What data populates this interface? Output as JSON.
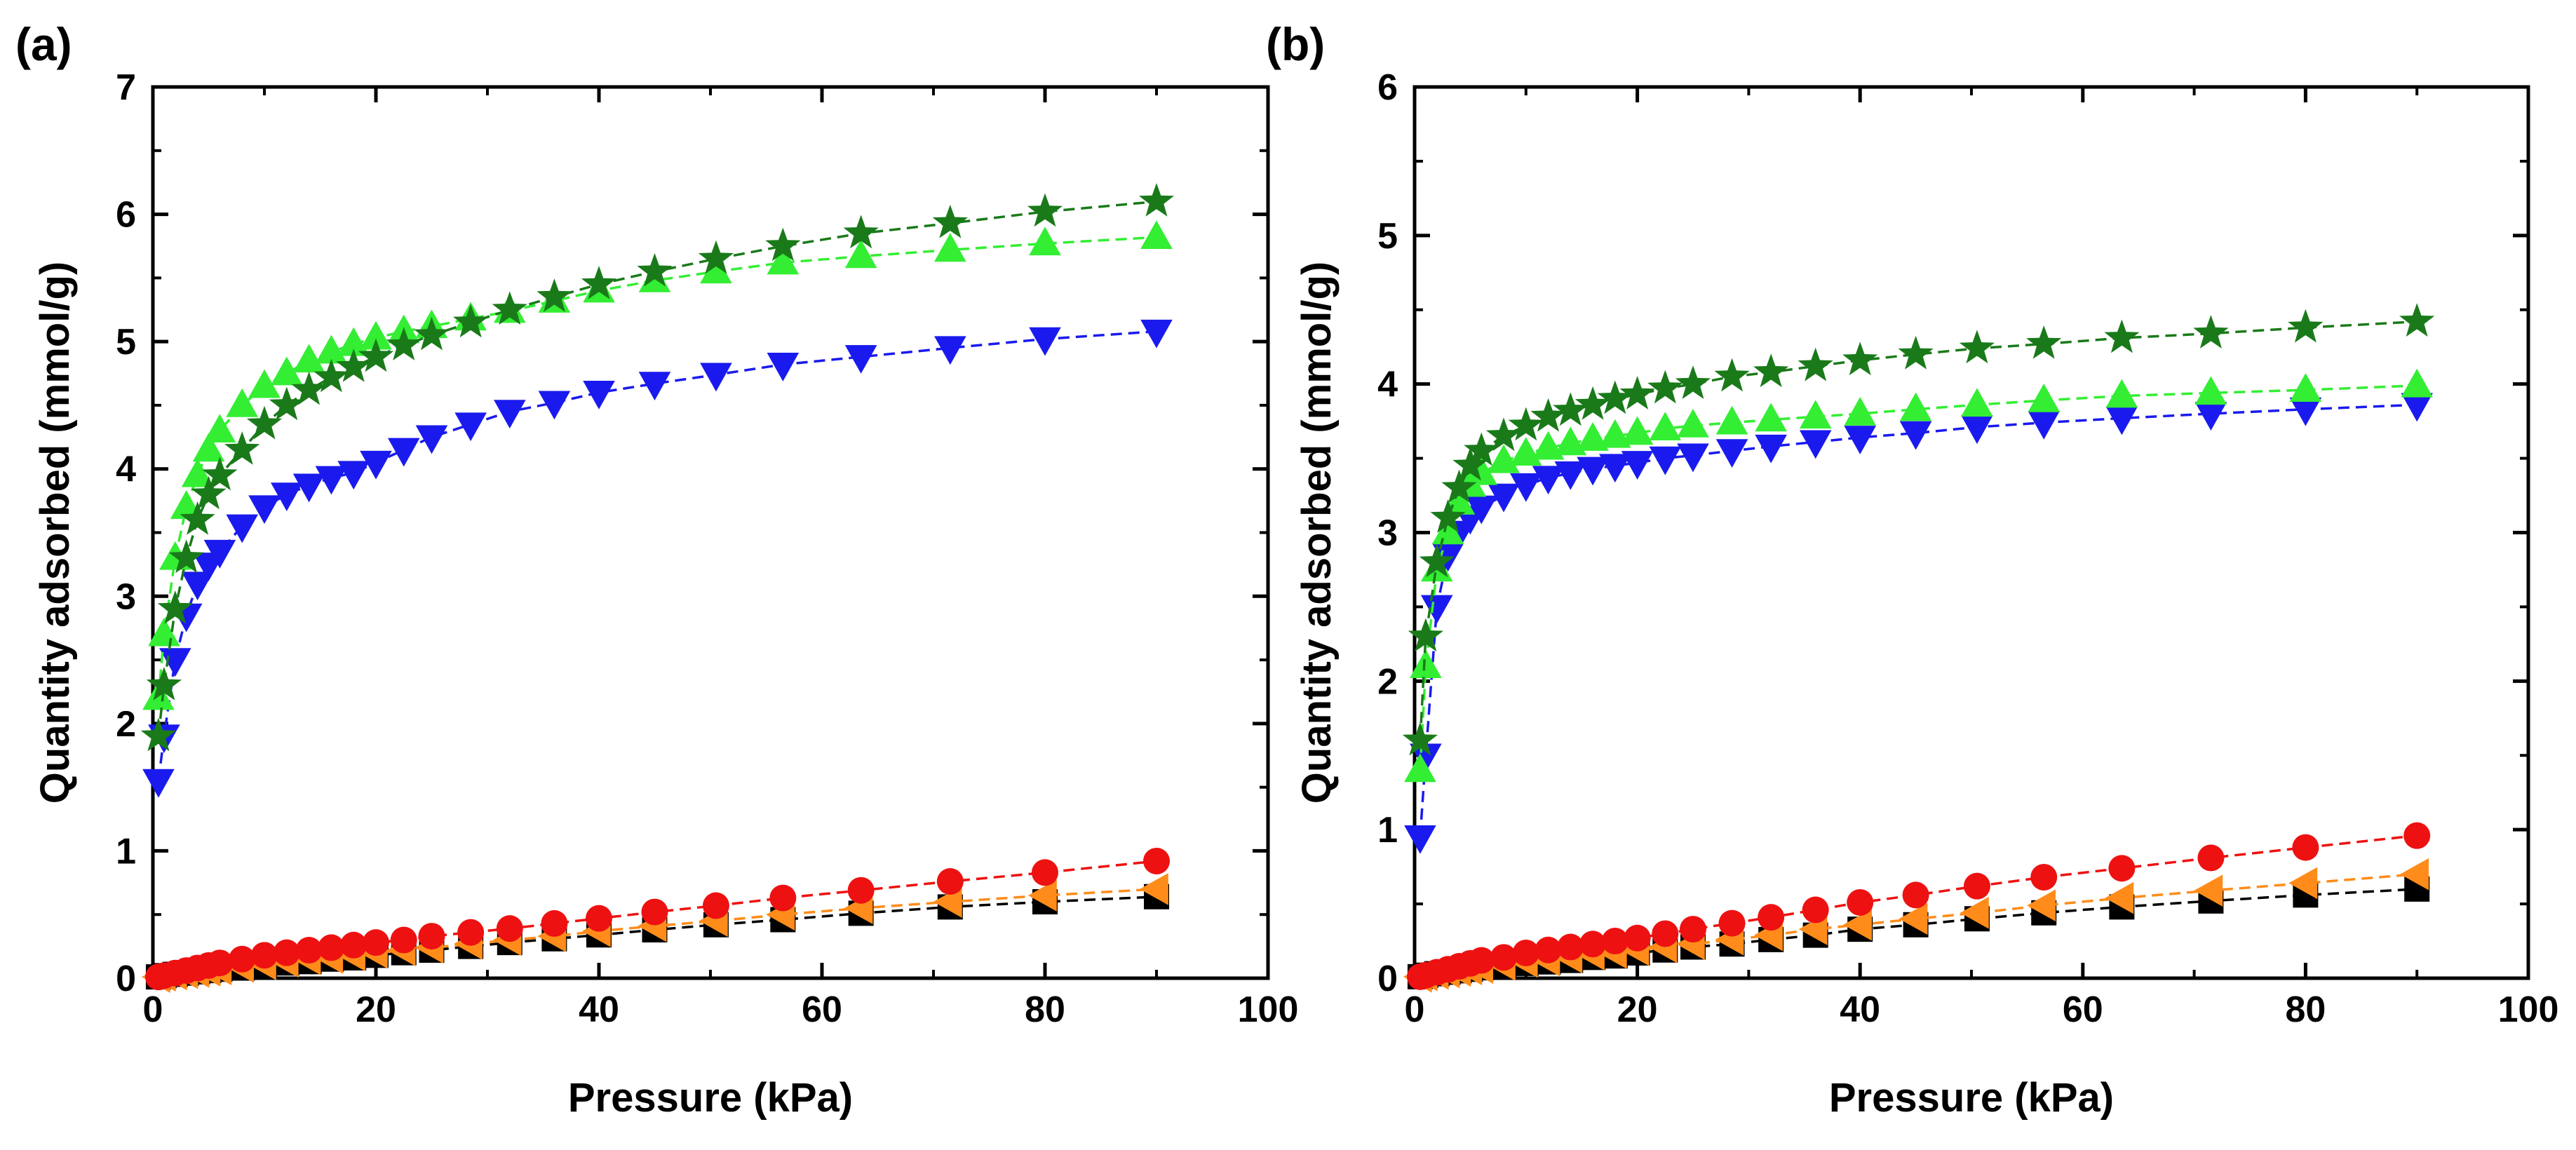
{
  "chart_data": [
    {
      "type": "scatter",
      "panel_label": "(a)",
      "title": "",
      "xlabel": "Pressure (kPa)",
      "ylabel": "Quantity adsorbed (mmol/g)",
      "xlim": [
        0,
        100
      ],
      "ylim": [
        0,
        7
      ],
      "xticks": [
        0,
        20,
        40,
        60,
        80,
        100
      ],
      "yticks": [
        0,
        1,
        2,
        3,
        4,
        5,
        6,
        7
      ],
      "grid": false,
      "legend": "none",
      "x": [
        0.5,
        1,
        2,
        3,
        4,
        5,
        6,
        8,
        10,
        12,
        14,
        16,
        18,
        20,
        22.5,
        25,
        28.5,
        32,
        36,
        40,
        45,
        50.5,
        56.5,
        63.5,
        71.5,
        80,
        90
      ],
      "series": [
        {
          "marker": "star",
          "color": "#1a7a1a",
          "line": "dashed",
          "values": [
            1.9,
            2.3,
            2.9,
            3.3,
            3.6,
            3.8,
            3.95,
            4.15,
            4.35,
            4.5,
            4.62,
            4.72,
            4.8,
            4.88,
            4.97,
            5.05,
            5.15,
            5.25,
            5.35,
            5.45,
            5.55,
            5.65,
            5.75,
            5.85,
            5.93,
            6.02,
            6.1
          ]
        },
        {
          "marker": "triangle-up",
          "color": "#33ee33",
          "line": "dashed",
          "values": [
            2.2,
            2.7,
            3.3,
            3.7,
            3.95,
            4.15,
            4.3,
            4.5,
            4.65,
            4.75,
            4.85,
            4.92,
            4.98,
            5.03,
            5.08,
            5.12,
            5.18,
            5.24,
            5.32,
            5.4,
            5.48,
            5.55,
            5.62,
            5.67,
            5.72,
            5.77,
            5.82
          ]
        },
        {
          "marker": "triangle-down",
          "color": "#1a1aee",
          "line": "dashed",
          "values": [
            1.55,
            1.9,
            2.5,
            2.85,
            3.1,
            3.25,
            3.35,
            3.55,
            3.7,
            3.8,
            3.87,
            3.93,
            3.97,
            4.05,
            4.15,
            4.25,
            4.35,
            4.45,
            4.52,
            4.6,
            4.67,
            4.74,
            4.82,
            4.88,
            4.95,
            5.02,
            5.08
          ]
        },
        {
          "marker": "circle",
          "color": "#ee1111",
          "line": "dashed",
          "values": [
            0.01,
            0.02,
            0.04,
            0.06,
            0.08,
            0.1,
            0.12,
            0.15,
            0.18,
            0.2,
            0.22,
            0.24,
            0.26,
            0.28,
            0.3,
            0.33,
            0.36,
            0.39,
            0.43,
            0.47,
            0.52,
            0.57,
            0.63,
            0.69,
            0.76,
            0.83,
            0.92
          ]
        },
        {
          "marker": "triangle-left",
          "color": "#ff8c1a",
          "line": "dashed",
          "values": [
            0.01,
            0.02,
            0.03,
            0.04,
            0.05,
            0.06,
            0.07,
            0.09,
            0.11,
            0.13,
            0.15,
            0.16,
            0.18,
            0.2,
            0.22,
            0.24,
            0.27,
            0.3,
            0.33,
            0.37,
            0.41,
            0.45,
            0.5,
            0.55,
            0.6,
            0.65,
            0.7
          ]
        },
        {
          "marker": "square",
          "color": "#000000",
          "line": "dashed",
          "values": [
            0.01,
            0.02,
            0.03,
            0.04,
            0.05,
            0.06,
            0.07,
            0.08,
            0.1,
            0.12,
            0.13,
            0.15,
            0.16,
            0.18,
            0.2,
            0.22,
            0.25,
            0.28,
            0.31,
            0.34,
            0.38,
            0.42,
            0.46,
            0.51,
            0.56,
            0.6,
            0.64
          ]
        }
      ]
    },
    {
      "type": "scatter",
      "panel_label": "(b)",
      "title": "",
      "xlabel": "Pressure (kPa)",
      "ylabel": "Quantity adsorbed (mmol/g)",
      "xlim": [
        0,
        100
      ],
      "ylim": [
        0,
        6
      ],
      "xticks": [
        0,
        20,
        40,
        60,
        80,
        100
      ],
      "yticks": [
        0,
        1,
        2,
        3,
        4,
        5,
        6
      ],
      "grid": false,
      "legend": "none",
      "x": [
        0.5,
        1,
        2,
        3,
        4,
        5,
        6,
        8,
        10,
        12,
        14,
        16,
        18,
        20,
        22.5,
        25,
        28.5,
        32,
        36,
        40,
        45,
        50.5,
        56.5,
        63.5,
        71.5,
        80,
        90
      ],
      "series": [
        {
          "marker": "star",
          "color": "#1a7a1a",
          "line": "dashed",
          "values": [
            1.6,
            2.3,
            2.8,
            3.1,
            3.3,
            3.45,
            3.55,
            3.65,
            3.72,
            3.78,
            3.82,
            3.86,
            3.9,
            3.93,
            3.97,
            4.0,
            4.05,
            4.08,
            4.12,
            4.16,
            4.2,
            4.24,
            4.27,
            4.31,
            4.34,
            4.38,
            4.42
          ]
        },
        {
          "marker": "triangle-up",
          "color": "#33ee33",
          "line": "dashed",
          "values": [
            1.4,
            2.1,
            2.75,
            3.0,
            3.2,
            3.32,
            3.4,
            3.48,
            3.53,
            3.57,
            3.6,
            3.63,
            3.65,
            3.67,
            3.7,
            3.72,
            3.74,
            3.76,
            3.78,
            3.8,
            3.83,
            3.86,
            3.89,
            3.92,
            3.94,
            3.96,
            3.99
          ]
        },
        {
          "marker": "triangle-down",
          "color": "#1a1aee",
          "line": "dashed",
          "values": [
            0.95,
            1.5,
            2.5,
            2.85,
            3.0,
            3.1,
            3.17,
            3.25,
            3.32,
            3.37,
            3.4,
            3.43,
            3.45,
            3.47,
            3.5,
            3.52,
            3.55,
            3.58,
            3.61,
            3.64,
            3.67,
            3.71,
            3.74,
            3.77,
            3.8,
            3.83,
            3.86
          ]
        },
        {
          "marker": "circle",
          "color": "#ee1111",
          "line": "dashed",
          "values": [
            0.01,
            0.02,
            0.04,
            0.06,
            0.08,
            0.1,
            0.12,
            0.14,
            0.17,
            0.19,
            0.21,
            0.23,
            0.25,
            0.27,
            0.3,
            0.33,
            0.37,
            0.41,
            0.46,
            0.51,
            0.56,
            0.62,
            0.68,
            0.74,
            0.81,
            0.88,
            0.96
          ]
        },
        {
          "marker": "triangle-left",
          "color": "#ff8c1a",
          "line": "dashed",
          "values": [
            0.01,
            0.02,
            0.03,
            0.04,
            0.05,
            0.06,
            0.07,
            0.09,
            0.11,
            0.12,
            0.14,
            0.16,
            0.17,
            0.19,
            0.21,
            0.23,
            0.26,
            0.29,
            0.33,
            0.36,
            0.4,
            0.44,
            0.49,
            0.54,
            0.59,
            0.64,
            0.7
          ]
        },
        {
          "marker": "square",
          "color": "#000000",
          "line": "dashed",
          "values": [
            0.01,
            0.02,
            0.03,
            0.04,
            0.05,
            0.06,
            0.07,
            0.08,
            0.1,
            0.11,
            0.12,
            0.14,
            0.15,
            0.17,
            0.19,
            0.21,
            0.23,
            0.26,
            0.29,
            0.33,
            0.36,
            0.4,
            0.44,
            0.48,
            0.52,
            0.56,
            0.6
          ]
        }
      ]
    }
  ]
}
